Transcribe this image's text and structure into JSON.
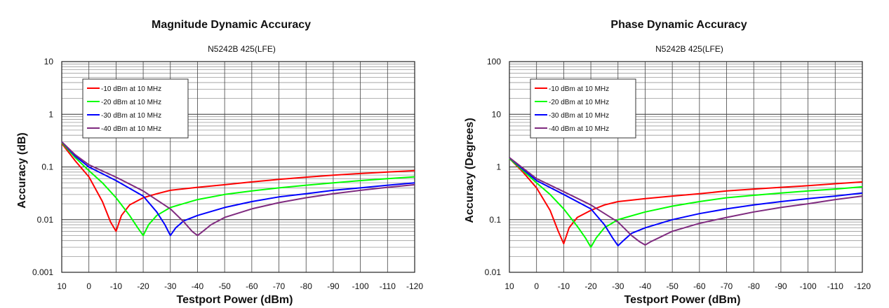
{
  "chart_data": [
    {
      "type": "line",
      "title": "Magnitude Dynamic Accuracy",
      "subtitle": "N5242B 425(LFE)",
      "xlabel": "Testport Power (dBm)",
      "ylabel": "Accuracy (dB)",
      "x_ticks": [
        10,
        0,
        -10,
        -20,
        -30,
        -40,
        -50,
        -60,
        -70,
        -80,
        -90,
        -100,
        -110,
        -120
      ],
      "xlim": [
        10,
        -120
      ],
      "yscale": "log",
      "ylim": [
        0.001,
        10
      ],
      "y_ticks": [
        "0.001",
        "0.01",
        "0.1",
        "1",
        "10"
      ],
      "grid": true,
      "legend": "top-left",
      "series": [
        {
          "name": "-10 dBm at 10 MHz",
          "color": "#ff0000",
          "points": [
            [
              10,
              0.28
            ],
            [
              5,
              0.13
            ],
            [
              0,
              0.065
            ],
            [
              -5,
              0.022
            ],
            [
              -8,
              0.009
            ],
            [
              -10,
              0.006
            ],
            [
              -12,
              0.012
            ],
            [
              -15,
              0.019
            ],
            [
              -20,
              0.026
            ],
            [
              -25,
              0.031
            ],
            [
              -30,
              0.036
            ],
            [
              -40,
              0.041
            ],
            [
              -50,
              0.046
            ],
            [
              -60,
              0.052
            ],
            [
              -70,
              0.058
            ],
            [
              -80,
              0.064
            ],
            [
              -90,
              0.07
            ],
            [
              -100,
              0.075
            ],
            [
              -110,
              0.08
            ],
            [
              -120,
              0.085
            ]
          ]
        },
        {
          "name": "-20 dBm at 10 MHz",
          "color": "#00ff00",
          "points": [
            [
              10,
              0.29
            ],
            [
              5,
              0.15
            ],
            [
              0,
              0.085
            ],
            [
              -5,
              0.05
            ],
            [
              -10,
              0.026
            ],
            [
              -15,
              0.012
            ],
            [
              -18,
              0.007
            ],
            [
              -20,
              0.005
            ],
            [
              -22,
              0.008
            ],
            [
              -25,
              0.012
            ],
            [
              -30,
              0.017
            ],
            [
              -40,
              0.024
            ],
            [
              -50,
              0.03
            ],
            [
              -60,
              0.035
            ],
            [
              -70,
              0.04
            ],
            [
              -80,
              0.045
            ],
            [
              -90,
              0.05
            ],
            [
              -100,
              0.055
            ],
            [
              -110,
              0.06
            ],
            [
              -120,
              0.065
            ]
          ]
        },
        {
          "name": "-30 dBm at 10 MHz",
          "color": "#0000ff",
          "points": [
            [
              10,
              0.3
            ],
            [
              5,
              0.16
            ],
            [
              0,
              0.1
            ],
            [
              -10,
              0.055
            ],
            [
              -20,
              0.028
            ],
            [
              -25,
              0.014
            ],
            [
              -28,
              0.008
            ],
            [
              -30,
              0.005
            ],
            [
              -32,
              0.007
            ],
            [
              -35,
              0.0095
            ],
            [
              -40,
              0.012
            ],
            [
              -50,
              0.017
            ],
            [
              -60,
              0.022
            ],
            [
              -70,
              0.027
            ],
            [
              -80,
              0.031
            ],
            [
              -90,
              0.036
            ],
            [
              -100,
              0.04
            ],
            [
              -110,
              0.045
            ],
            [
              -120,
              0.05
            ]
          ]
        },
        {
          "name": "-40 dBm at 10 MHz",
          "color": "#7f2a7f",
          "points": [
            [
              10,
              0.3
            ],
            [
              5,
              0.17
            ],
            [
              0,
              0.11
            ],
            [
              -10,
              0.064
            ],
            [
              -20,
              0.035
            ],
            [
              -30,
              0.016
            ],
            [
              -35,
              0.009
            ],
            [
              -38,
              0.006
            ],
            [
              -40,
              0.005
            ],
            [
              -42,
              0.006
            ],
            [
              -45,
              0.008
            ],
            [
              -50,
              0.011
            ],
            [
              -60,
              0.016
            ],
            [
              -70,
              0.021
            ],
            [
              -80,
              0.026
            ],
            [
              -90,
              0.031
            ],
            [
              -100,
              0.036
            ],
            [
              -110,
              0.041
            ],
            [
              -120,
              0.046
            ]
          ]
        }
      ]
    },
    {
      "type": "line",
      "title": "Phase Dynamic Accuracy",
      "subtitle": "N5242B 425(LFE)",
      "xlabel": "Testport Power (dBm)",
      "ylabel": "Accuracy (Degrees)",
      "x_ticks": [
        10,
        0,
        -10,
        -20,
        -30,
        -40,
        -50,
        -60,
        -70,
        -80,
        -90,
        -100,
        -110,
        -120
      ],
      "xlim": [
        10,
        -120
      ],
      "yscale": "log",
      "ylim": [
        0.01,
        100
      ],
      "y_ticks": [
        "0.01",
        "0.1",
        "1",
        "10",
        "100"
      ],
      "grid": true,
      "legend": "top-left",
      "series": [
        {
          "name": "-10 dBm at 10 MHz",
          "color": "#ff0000",
          "points": [
            [
              10,
              1.45
            ],
            [
              5,
              0.8
            ],
            [
              0,
              0.4
            ],
            [
              -5,
              0.15
            ],
            [
              -8,
              0.06
            ],
            [
              -10,
              0.035
            ],
            [
              -12,
              0.07
            ],
            [
              -15,
              0.11
            ],
            [
              -20,
              0.15
            ],
            [
              -25,
              0.19
            ],
            [
              -30,
              0.22
            ],
            [
              -40,
              0.25
            ],
            [
              -50,
              0.28
            ],
            [
              -60,
              0.31
            ],
            [
              -70,
              0.35
            ],
            [
              -80,
              0.38
            ],
            [
              -90,
              0.41
            ],
            [
              -100,
              0.44
            ],
            [
              -110,
              0.48
            ],
            [
              -120,
              0.52
            ]
          ]
        },
        {
          "name": "-20 dBm at 10 MHz",
          "color": "#00ff00",
          "points": [
            [
              10,
              1.45
            ],
            [
              5,
              0.85
            ],
            [
              0,
              0.5
            ],
            [
              -5,
              0.3
            ],
            [
              -10,
              0.16
            ],
            [
              -15,
              0.075
            ],
            [
              -18,
              0.045
            ],
            [
              -20,
              0.03
            ],
            [
              -22,
              0.045
            ],
            [
              -25,
              0.07
            ],
            [
              -30,
              0.1
            ],
            [
              -40,
              0.14
            ],
            [
              -50,
              0.18
            ],
            [
              -60,
              0.22
            ],
            [
              -70,
              0.26
            ],
            [
              -80,
              0.29
            ],
            [
              -90,
              0.32
            ],
            [
              -100,
              0.35
            ],
            [
              -110,
              0.38
            ],
            [
              -120,
              0.42
            ]
          ]
        },
        {
          "name": "-30 dBm at 10 MHz",
          "color": "#0000ff",
          "points": [
            [
              10,
              1.5
            ],
            [
              5,
              0.9
            ],
            [
              0,
              0.55
            ],
            [
              -10,
              0.3
            ],
            [
              -20,
              0.16
            ],
            [
              -25,
              0.08
            ],
            [
              -28,
              0.045
            ],
            [
              -30,
              0.032
            ],
            [
              -32,
              0.04
            ],
            [
              -35,
              0.055
            ],
            [
              -40,
              0.07
            ],
            [
              -50,
              0.1
            ],
            [
              -60,
              0.13
            ],
            [
              -70,
              0.16
            ],
            [
              -80,
              0.19
            ],
            [
              -90,
              0.22
            ],
            [
              -100,
              0.25
            ],
            [
              -110,
              0.28
            ],
            [
              -120,
              0.32
            ]
          ]
        },
        {
          "name": "-40 dBm at 10 MHz",
          "color": "#7f2a7f",
          "points": [
            [
              10,
              1.5
            ],
            [
              5,
              0.95
            ],
            [
              0,
              0.6
            ],
            [
              -10,
              0.34
            ],
            [
              -20,
              0.19
            ],
            [
              -30,
              0.09
            ],
            [
              -35,
              0.05
            ],
            [
              -38,
              0.038
            ],
            [
              -40,
              0.033
            ],
            [
              -42,
              0.038
            ],
            [
              -45,
              0.045
            ],
            [
              -50,
              0.06
            ],
            [
              -60,
              0.085
            ],
            [
              -70,
              0.11
            ],
            [
              -80,
              0.14
            ],
            [
              -90,
              0.17
            ],
            [
              -100,
              0.2
            ],
            [
              -110,
              0.24
            ],
            [
              -120,
              0.28
            ]
          ]
        }
      ]
    }
  ]
}
